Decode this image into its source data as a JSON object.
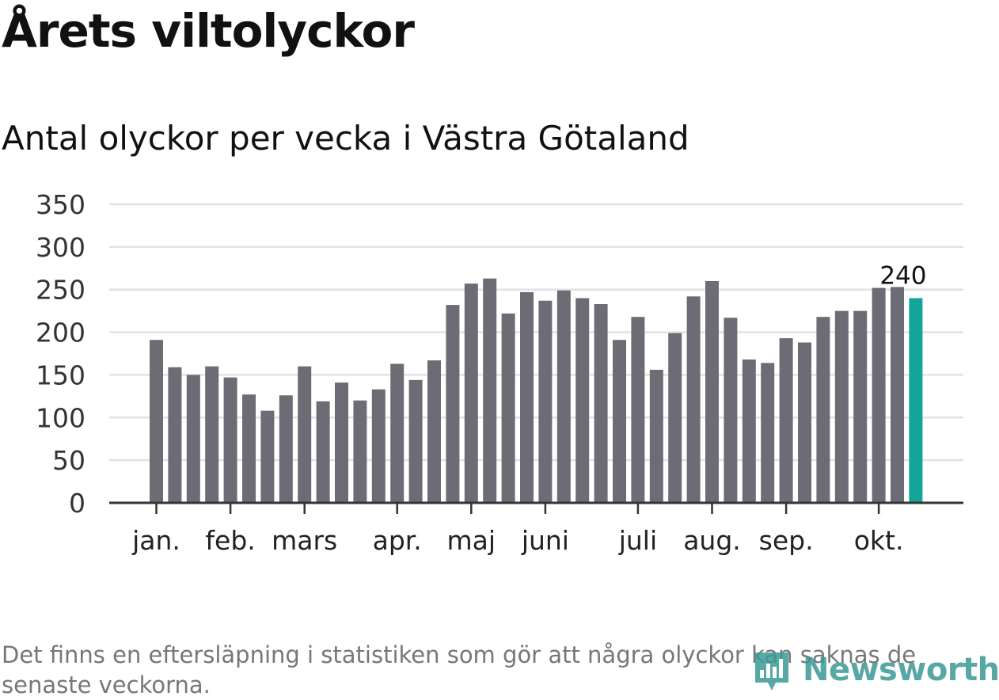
{
  "title": "Årets viltolyckor",
  "subtitle": "Antal olyckor per vecka i Västra Götaland",
  "footnote": "Det finns en eftersläpning i statistiken som gör att några olyckor kan saknas de senaste veckorna.",
  "brand": "Newsworthy",
  "colors": {
    "bar": "#6d6c74",
    "highlight": "#14a59a",
    "grid": "#e2e2e2",
    "axis": "#333333",
    "brand": "#3a9a96"
  },
  "chart_data": {
    "type": "bar",
    "ylim": [
      0,
      350
    ],
    "yticks": [
      0,
      50,
      100,
      150,
      200,
      250,
      300,
      350
    ],
    "grid": true,
    "month_labels": [
      {
        "label": "jan.",
        "week": 1
      },
      {
        "label": "feb.",
        "week": 5
      },
      {
        "label": "mars",
        "week": 9
      },
      {
        "label": "apr.",
        "week": 14
      },
      {
        "label": "maj",
        "week": 18
      },
      {
        "label": "juni",
        "week": 22
      },
      {
        "label": "juli",
        "week": 27
      },
      {
        "label": "aug.",
        "week": 31
      },
      {
        "label": "sep.",
        "week": 35
      },
      {
        "label": "okt.",
        "week": 40
      }
    ],
    "values": [
      191,
      159,
      150,
      160,
      147,
      127,
      108,
      126,
      160,
      119,
      141,
      120,
      133,
      163,
      144,
      167,
      232,
      257,
      263,
      222,
      247,
      237,
      249,
      240,
      233,
      191,
      218,
      156,
      199,
      242,
      260,
      217,
      168,
      164,
      193,
      188,
      218,
      225,
      225,
      252,
      253,
      240
    ],
    "highlight_index": 41,
    "data_label": "240"
  }
}
